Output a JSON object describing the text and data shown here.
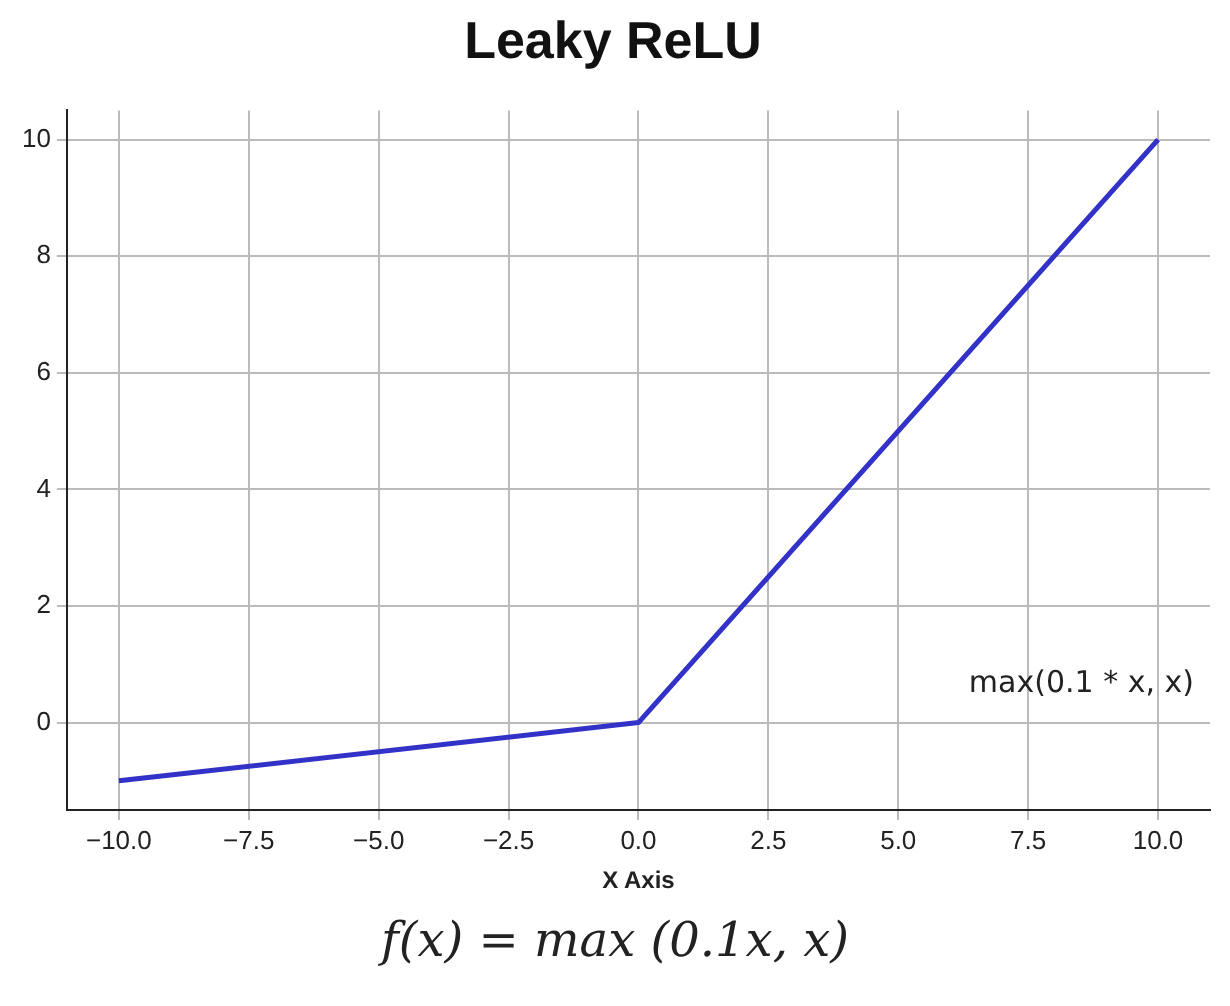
{
  "chart_data": {
    "type": "line",
    "title": "Leaky ReLU",
    "xlabel": "X Axis",
    "x": [
      -10,
      0,
      10
    ],
    "series": [
      {
        "color": "#3232c8",
        "values": [
          -1,
          0,
          10
        ]
      }
    ],
    "xlim": [
      -11,
      11
    ],
    "ylim": [
      -1.5,
      10.5
    ],
    "xticks": [
      {
        "value": -10,
        "label": "−10.0"
      },
      {
        "value": -7.5,
        "label": "−7.5"
      },
      {
        "value": -5,
        "label": "−5.0"
      },
      {
        "value": -2.5,
        "label": "−2.5"
      },
      {
        "value": 0,
        "label": "0.0"
      },
      {
        "value": 2.5,
        "label": "2.5"
      },
      {
        "value": 5,
        "label": "5.0"
      },
      {
        "value": 7.5,
        "label": "7.5"
      },
      {
        "value": 10,
        "label": "10.0"
      }
    ],
    "yticks": [
      0,
      2,
      4,
      6,
      8,
      10
    ],
    "grid": true,
    "marker": "none",
    "line_style": "solid",
    "legend": false,
    "annotations": [
      "max(0.1 * x, x)",
      "f(x) = max (0.1x, x)"
    ]
  }
}
